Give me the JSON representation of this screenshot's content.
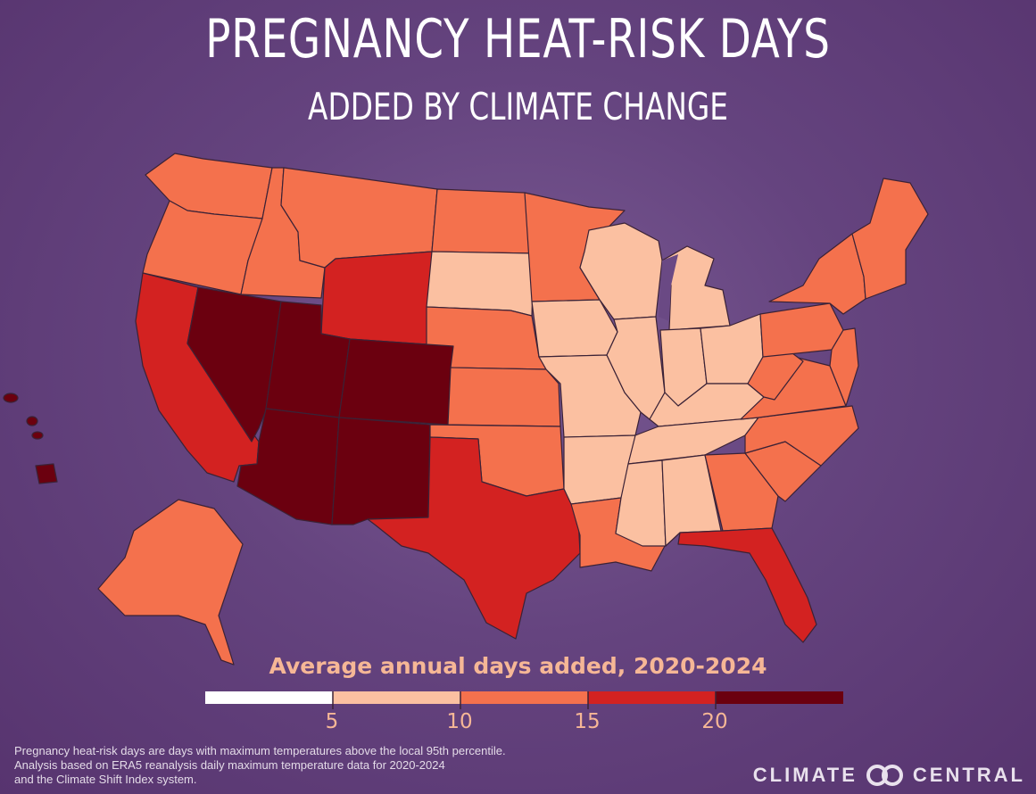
{
  "title": "PREGNANCY HEAT-RISK DAYS",
  "subtitle": "ADDED BY CLIMATE CHANGE",
  "legend": {
    "title": "Average annual days added, 2020-2024",
    "ticks": [
      "5",
      "10",
      "15",
      "20"
    ],
    "bins": [
      {
        "range": "0-5",
        "color": "#ffffff"
      },
      {
        "range": "5-10",
        "color": "#fbc0a1"
      },
      {
        "range": "10-15",
        "color": "#f4714d"
      },
      {
        "range": "15-20",
        "color": "#d32221"
      },
      {
        "range": "20+",
        "color": "#6b000f"
      }
    ]
  },
  "map_regions": [
    {
      "name": "Washington",
      "bin": "10-15"
    },
    {
      "name": "Oregon",
      "bin": "10-15"
    },
    {
      "name": "California",
      "bin": "15-20"
    },
    {
      "name": "Idaho",
      "bin": "10-15"
    },
    {
      "name": "Nevada",
      "bin": "20+"
    },
    {
      "name": "Montana",
      "bin": "10-15"
    },
    {
      "name": "Wyoming",
      "bin": "15-20"
    },
    {
      "name": "Utah",
      "bin": "20+"
    },
    {
      "name": "Colorado",
      "bin": "20+"
    },
    {
      "name": "Arizona",
      "bin": "20+"
    },
    {
      "name": "New Mexico",
      "bin": "20+"
    },
    {
      "name": "North Dakota",
      "bin": "10-15"
    },
    {
      "name": "South Dakota",
      "bin": "5-10"
    },
    {
      "name": "Nebraska",
      "bin": "10-15"
    },
    {
      "name": "Kansas",
      "bin": "10-15"
    },
    {
      "name": "Oklahoma",
      "bin": "10-15"
    },
    {
      "name": "Texas",
      "bin": "15-20"
    },
    {
      "name": "Minnesota",
      "bin": "10-15"
    },
    {
      "name": "Iowa",
      "bin": "5-10"
    },
    {
      "name": "Missouri",
      "bin": "5-10"
    },
    {
      "name": "Arkansas",
      "bin": "5-10"
    },
    {
      "name": "Louisiana",
      "bin": "10-15"
    },
    {
      "name": "Wisconsin",
      "bin": "5-10"
    },
    {
      "name": "Illinois",
      "bin": "5-10"
    },
    {
      "name": "Michigan",
      "bin": "5-10"
    },
    {
      "name": "Indiana",
      "bin": "5-10"
    },
    {
      "name": "Ohio",
      "bin": "5-10"
    },
    {
      "name": "Kentucky",
      "bin": "5-10"
    },
    {
      "name": "Tennessee",
      "bin": "5-10"
    },
    {
      "name": "Mississippi",
      "bin": "5-10"
    },
    {
      "name": "Alabama",
      "bin": "5-10"
    },
    {
      "name": "Georgia",
      "bin": "10-15"
    },
    {
      "name": "Florida",
      "bin": "15-20"
    },
    {
      "name": "South Carolina",
      "bin": "10-15"
    },
    {
      "name": "North Carolina",
      "bin": "10-15"
    },
    {
      "name": "Virginia",
      "bin": "10-15"
    },
    {
      "name": "West Virginia",
      "bin": "10-15"
    },
    {
      "name": "Pennsylvania",
      "bin": "10-15"
    },
    {
      "name": "New York",
      "bin": "10-15"
    },
    {
      "name": "New England",
      "bin": "10-15"
    },
    {
      "name": "Mid-Atlantic",
      "bin": "10-15"
    },
    {
      "name": "Alaska",
      "bin": "10-15"
    },
    {
      "name": "Hawaii",
      "bin": "20+"
    }
  ],
  "footnote": [
    "Pregnancy heat-risk days are days with maximum temperatures above the local 95th percentile.",
    "Analysis based on ERA5 reanalysis daily maximum temperature data for 2020-2024",
    "and the Climate Shift Index system."
  ],
  "logo": {
    "left": "CLIMATE",
    "right": "CENTRAL"
  }
}
